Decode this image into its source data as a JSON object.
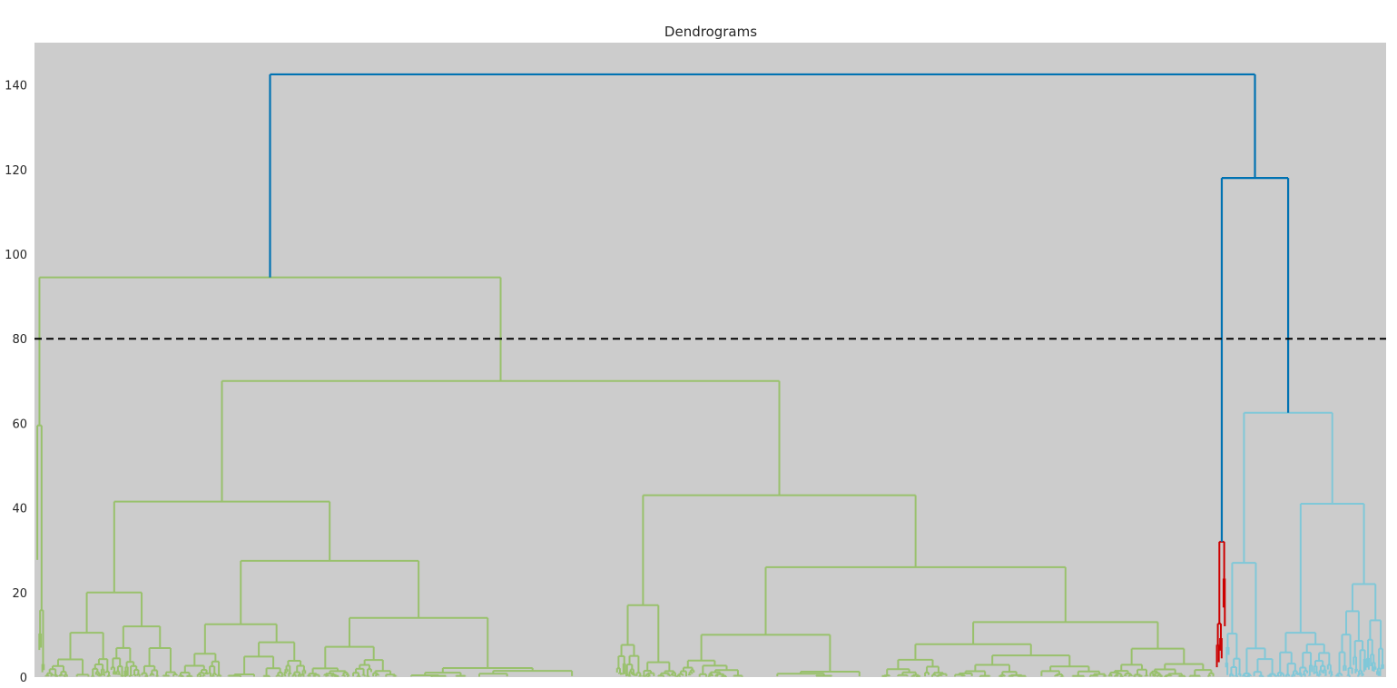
{
  "chart_data": {
    "type": "dendrogram",
    "title": "Dendrograms",
    "xlabel": "",
    "ylabel": "",
    "ylim": [
      0,
      150
    ],
    "yticks": [
      0,
      20,
      40,
      60,
      80,
      100,
      120,
      140
    ],
    "xticks_visible": false,
    "grid": false,
    "background_color": "#cccccc",
    "threshold": {
      "value": 80,
      "style": "dashed",
      "color": "#000000"
    },
    "colors": {
      "root": "#0072b2",
      "cluster_green": "#99c16c",
      "cluster_red": "#cc0000",
      "cluster_cyan": "#80c8d8"
    },
    "leaf_span": [
      0,
      1
    ],
    "merges": [
      {
        "id": "root",
        "children": [
          "G",
          "RC"
        ],
        "height": 142.5,
        "color": "root"
      },
      {
        "id": "RC",
        "children": [
          "R",
          "C"
        ],
        "height": 118,
        "color": "root"
      },
      {
        "id": "G",
        "children": [
          "G_left",
          "G_main"
        ],
        "height": 94.5,
        "color": "cluster_green"
      },
      {
        "id": "G_left",
        "children": [],
        "height": 59.5,
        "color": "cluster_green",
        "leaf_range": [
          0,
          0.006
        ]
      },
      {
        "id": "G_main",
        "children": [
          "G_A",
          "G_B"
        ],
        "height": 70,
        "color": "cluster_green"
      },
      {
        "id": "G_A",
        "children": [
          "G_A1",
          "G_A2"
        ],
        "height": 41.5,
        "color": "cluster_green"
      },
      {
        "id": "G_A1",
        "children": [
          "G_A1a",
          "G_A1b"
        ],
        "height": 20,
        "color": "cluster_green"
      },
      {
        "id": "G_A1a",
        "children": [],
        "height": 10.5,
        "color": "cluster_green",
        "leaf_range": [
          0.006,
          0.055
        ]
      },
      {
        "id": "G_A1b",
        "children": [],
        "height": 12,
        "color": "cluster_green",
        "leaf_range": [
          0.055,
          0.105
        ]
      },
      {
        "id": "G_A2",
        "children": [
          "G_A2a",
          "G_A2b"
        ],
        "height": 27.5,
        "color": "cluster_green"
      },
      {
        "id": "G_A2a",
        "children": [],
        "height": 12.5,
        "color": "cluster_green",
        "leaf_range": [
          0.105,
          0.2
        ]
      },
      {
        "id": "G_A2b",
        "children": [],
        "height": 14,
        "color": "cluster_green",
        "leaf_range": [
          0.2,
          0.43
        ]
      },
      {
        "id": "G_B",
        "children": [
          "G_B1",
          "G_B2"
        ],
        "height": 43,
        "color": "cluster_green"
      },
      {
        "id": "G_B1",
        "children": [],
        "height": 17,
        "color": "cluster_green",
        "leaf_range": [
          0.43,
          0.475
        ]
      },
      {
        "id": "G_B2",
        "children": [
          "G_B2a",
          "G_B2b"
        ],
        "height": 26,
        "color": "cluster_green"
      },
      {
        "id": "G_B2a",
        "children": [],
        "height": 10,
        "color": "cluster_green",
        "leaf_range": [
          0.475,
          0.625
        ]
      },
      {
        "id": "G_B2b",
        "children": [],
        "height": 13,
        "color": "cluster_green",
        "leaf_range": [
          0.625,
          0.875
        ]
      },
      {
        "id": "R",
        "children": [],
        "height": 32,
        "color": "cluster_red",
        "leaf_range": [
          0.875,
          0.882
        ]
      },
      {
        "id": "C",
        "children": [
          "C_a",
          "C_b"
        ],
        "height": 62.5,
        "color": "cluster_cyan"
      },
      {
        "id": "C_a",
        "children": [],
        "height": 27,
        "color": "cluster_cyan",
        "leaf_range": [
          0.882,
          0.92
        ]
      },
      {
        "id": "C_b",
        "children": [
          "C_b1",
          "C_b2"
        ],
        "height": 41,
        "color": "cluster_cyan"
      },
      {
        "id": "C_b1",
        "children": [],
        "height": 10.5,
        "color": "cluster_cyan",
        "leaf_range": [
          0.92,
          0.962
        ]
      },
      {
        "id": "C_b2",
        "children": [],
        "height": 22,
        "color": "cluster_cyan",
        "leaf_range": [
          0.962,
          1
        ]
      }
    ]
  }
}
